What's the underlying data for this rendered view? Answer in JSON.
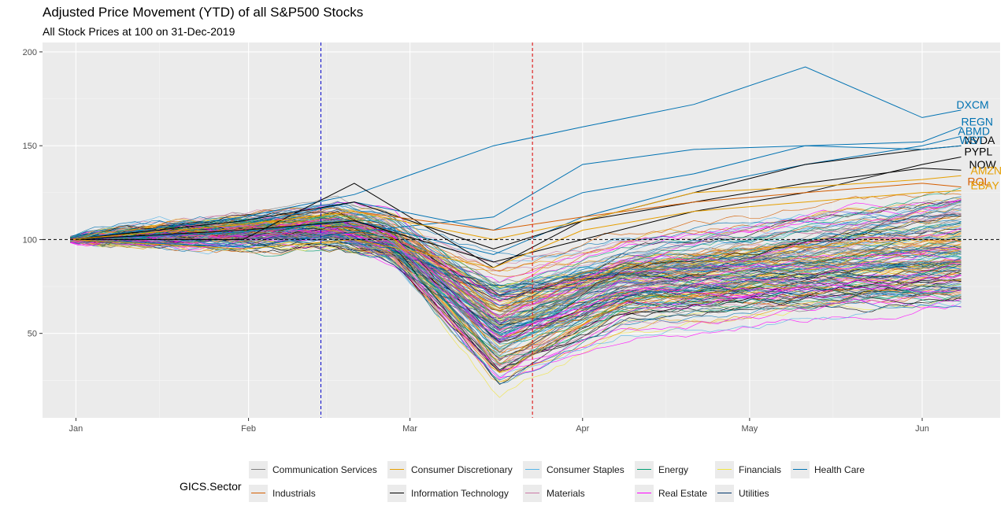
{
  "chart_data": {
    "type": "line",
    "title": "Adjusted Price Movement (YTD) of all S&P500 Stocks",
    "subtitle": "All Stock Prices at 100 on 31-Dec-2019",
    "xlabel": "",
    "ylabel": "",
    "x_tick_labels": [
      "Jan",
      "Feb",
      "Mar",
      "Apr",
      "May",
      "Jun"
    ],
    "y_ticks": [
      50,
      100,
      150,
      200
    ],
    "ylim": [
      5,
      205
    ],
    "xlim": [
      "2019-12-26",
      "2020-06-15"
    ],
    "grid": true,
    "reference_lines": [
      {
        "axis": "y",
        "value": 100,
        "color": "#000000",
        "style": "dashed"
      },
      {
        "axis": "x",
        "value": "2020-02-14",
        "color": "#0000cc",
        "style": "dashed"
      },
      {
        "axis": "x",
        "value": "2020-03-23",
        "color": "#dd0000",
        "style": "dashed"
      }
    ],
    "legend": {
      "title": "GICS.Sector",
      "position": "bottom",
      "entries": [
        {
          "name": "Communication Services",
          "color": "#7f7f7f"
        },
        {
          "name": "Consumer Discretionary",
          "color": "#e69f00"
        },
        {
          "name": "Consumer Staples",
          "color": "#56b4e9"
        },
        {
          "name": "Energy",
          "color": "#009e73"
        },
        {
          "name": "Financials",
          "color": "#f0e442"
        },
        {
          "name": "Health Care",
          "color": "#0072b2"
        },
        {
          "name": "Industrials",
          "color": "#d55e00"
        },
        {
          "name": "Information Technology",
          "color": "#000000"
        },
        {
          "name": "Materials",
          "color": "#cc79a7"
        },
        {
          "name": "Real Estate",
          "color": "#ff00ff"
        },
        {
          "name": "Utilities",
          "color": "#00366c"
        }
      ]
    },
    "series": [
      {
        "label": "DXCM",
        "sector": "Health Care",
        "x": [
          "2019-12-31",
          "2020-01-31",
          "2020-02-20",
          "2020-03-16",
          "2020-04-01",
          "2020-04-21",
          "2020-05-11",
          "2020-06-01",
          "2020-06-08"
        ],
        "y": [
          100,
          112,
          124,
          150,
          160,
          172,
          192,
          165,
          169
        ]
      },
      {
        "label": "REGN",
        "sector": "Health Care",
        "x": [
          "2019-12-31",
          "2020-01-31",
          "2020-02-20",
          "2020-03-16",
          "2020-04-01",
          "2020-04-21",
          "2020-05-11",
          "2020-06-01",
          "2020-06-08"
        ],
        "y": [
          100,
          96,
          104,
          112,
          140,
          148,
          150,
          152,
          160
        ]
      },
      {
        "label": "ABMD",
        "sector": "Health Care",
        "x": [
          "2019-12-31",
          "2020-01-31",
          "2020-02-20",
          "2020-03-16",
          "2020-04-01",
          "2020-04-21",
          "2020-05-11",
          "2020-06-01",
          "2020-06-08"
        ],
        "y": [
          100,
          104,
          110,
          92,
          112,
          128,
          140,
          150,
          155
        ]
      },
      {
        "label": "NVDA",
        "sector": "Information Technology",
        "x": [
          "2019-12-31",
          "2020-01-31",
          "2020-02-20",
          "2020-03-16",
          "2020-04-01",
          "2020-04-21",
          "2020-05-11",
          "2020-06-01",
          "2020-06-08"
        ],
        "y": [
          100,
          100,
          130,
          85,
          110,
          125,
          140,
          148,
          150
        ]
      },
      {
        "label": "WST",
        "sector": "Health Care",
        "x": [
          "2019-12-31",
          "2020-01-31",
          "2020-02-20",
          "2020-03-16",
          "2020-04-01",
          "2020-04-21",
          "2020-05-11",
          "2020-06-01",
          "2020-06-08"
        ],
        "y": [
          100,
          108,
          120,
          105,
          125,
          135,
          150,
          148,
          150
        ]
      },
      {
        "label": "PYPL",
        "sector": "Information Technology",
        "x": [
          "2019-12-31",
          "2020-01-31",
          "2020-02-20",
          "2020-03-16",
          "2020-04-01",
          "2020-04-21",
          "2020-05-11",
          "2020-06-01",
          "2020-06-08"
        ],
        "y": [
          100,
          105,
          110,
          88,
          100,
          115,
          125,
          140,
          144
        ]
      },
      {
        "label": "NOW",
        "sector": "Information Technology",
        "x": [
          "2019-12-31",
          "2020-01-31",
          "2020-02-20",
          "2020-03-16",
          "2020-04-01",
          "2020-04-21",
          "2020-05-11",
          "2020-06-01",
          "2020-06-08"
        ],
        "y": [
          100,
          110,
          120,
          95,
          110,
          120,
          130,
          138,
          137
        ]
      },
      {
        "label": "ROL",
        "sector": "Industrials",
        "x": [
          "2019-12-31",
          "2020-01-31",
          "2020-02-20",
          "2020-03-16",
          "2020-04-01",
          "2020-04-21",
          "2020-05-11",
          "2020-06-01",
          "2020-06-08"
        ],
        "y": [
          100,
          108,
          115,
          105,
          112,
          120,
          125,
          130,
          128
        ]
      },
      {
        "label": "AMZN",
        "sector": "Consumer Discretionary",
        "x": [
          "2019-12-31",
          "2020-01-31",
          "2020-02-20",
          "2020-03-16",
          "2020-04-01",
          "2020-04-21",
          "2020-05-11",
          "2020-06-01",
          "2020-06-08"
        ],
        "y": [
          100,
          108,
          115,
          100,
          110,
          125,
          128,
          132,
          134
        ]
      },
      {
        "label": "EBAY",
        "sector": "Consumer Discretionary",
        "x": [
          "2019-12-31",
          "2020-01-31",
          "2020-02-20",
          "2020-03-16",
          "2020-04-01",
          "2020-04-21",
          "2020-05-11",
          "2020-06-01",
          "2020-06-08"
        ],
        "y": [
          100,
          95,
          100,
          85,
          105,
          115,
          120,
          125,
          126
        ]
      }
    ]
  }
}
